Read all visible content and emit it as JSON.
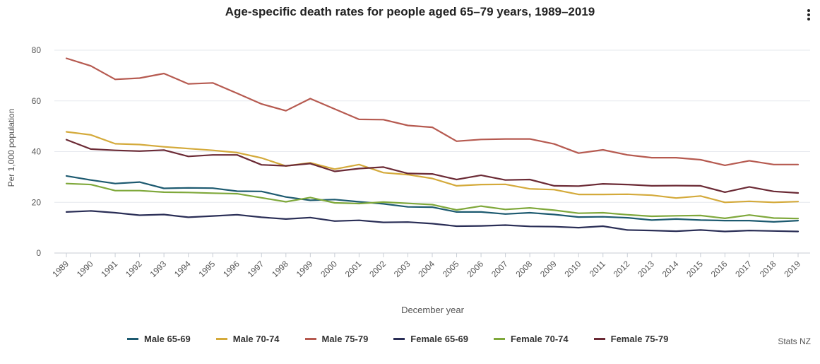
{
  "title": "Age-specific death rates for people aged 65–79 years, 1989–2019",
  "credit": "Stats NZ",
  "menu_icon": "kebab-menu-icon",
  "chart_data": {
    "type": "line",
    "title": "Age-specific death rates for people aged 65–79 years, 1989–2019",
    "xlabel": "December year",
    "ylabel": "Per 1,000 population",
    "ylim": [
      0,
      80
    ],
    "yticks": [
      0,
      20,
      40,
      60,
      80
    ],
    "grid": true,
    "legend_position": "bottom",
    "categories": [
      "1989",
      "1990",
      "1991",
      "1992",
      "1993",
      "1994",
      "1995",
      "1996",
      "1997",
      "1998",
      "1999",
      "2000",
      "2001",
      "2002",
      "2003",
      "2004",
      "2005",
      "2006",
      "2007",
      "2008",
      "2009",
      "2010",
      "2011",
      "2012",
      "2013",
      "2014",
      "2015",
      "2016",
      "2017",
      "2018",
      "2019"
    ],
    "series": [
      {
        "name": "Male 65-69",
        "color": "#1d5a70",
        "values": [
          30.4,
          28.8,
          27.4,
          28.0,
          25.5,
          25.7,
          25.6,
          24.4,
          24.3,
          22.1,
          20.8,
          21.1,
          20.2,
          19.4,
          18.2,
          18.1,
          16.2,
          16.2,
          15.4,
          15.9,
          15.2,
          14.2,
          14.3,
          13.9,
          13.0,
          13.4,
          13.0,
          12.8,
          12.8,
          12.3,
          12.8
        ]
      },
      {
        "name": "Male 70-74",
        "color": "#d4aa3b",
        "values": [
          47.8,
          46.6,
          43.1,
          42.8,
          41.9,
          41.2,
          40.5,
          39.6,
          37.5,
          34.3,
          35.6,
          33.1,
          34.9,
          31.7,
          30.9,
          29.4,
          26.5,
          27.0,
          27.1,
          25.3,
          25.0,
          23.1,
          23.1,
          23.2,
          22.8,
          21.7,
          22.5,
          20.0,
          20.4,
          20.0,
          20.3
        ]
      },
      {
        "name": "Male 75-79",
        "color": "#b65a50",
        "values": [
          76.8,
          73.8,
          68.5,
          69.0,
          70.8,
          66.7,
          67.1,
          63.0,
          58.8,
          56.1,
          60.9,
          56.8,
          52.7,
          52.6,
          50.3,
          49.6,
          44.1,
          44.8,
          45.0,
          45.0,
          43.0,
          39.4,
          40.7,
          38.7,
          37.6,
          37.6,
          36.8,
          34.6,
          36.4,
          34.9,
          34.9
        ]
      },
      {
        "name": "Female 65-69",
        "color": "#2a2e56",
        "values": [
          16.2,
          16.6,
          15.9,
          14.9,
          15.2,
          14.1,
          14.6,
          15.1,
          14.1,
          13.4,
          14.0,
          12.6,
          12.9,
          12.1,
          12.2,
          11.6,
          10.6,
          10.7,
          11.0,
          10.5,
          10.4,
          10.0,
          10.6,
          9.1,
          8.9,
          8.6,
          9.1,
          8.5,
          8.9,
          8.7,
          8.5
        ]
      },
      {
        "name": "Female 70-74",
        "color": "#7fa83b",
        "values": [
          27.4,
          27.0,
          24.6,
          24.6,
          24.0,
          23.9,
          23.6,
          23.4,
          21.8,
          20.2,
          21.9,
          19.8,
          19.5,
          20.1,
          19.6,
          19.1,
          17.0,
          18.5,
          17.2,
          17.8,
          16.9,
          15.7,
          15.9,
          15.1,
          14.5,
          14.7,
          14.8,
          13.7,
          15.0,
          13.8,
          13.6
        ]
      },
      {
        "name": "Female 75-79",
        "color": "#6b2a35",
        "values": [
          44.7,
          41.0,
          40.5,
          40.2,
          40.6,
          38.1,
          38.7,
          38.7,
          34.8,
          34.4,
          35.3,
          32.2,
          33.3,
          33.9,
          31.4,
          31.2,
          29.0,
          30.7,
          28.8,
          29.0,
          26.5,
          26.4,
          27.3,
          27.0,
          26.5,
          26.6,
          26.5,
          24.0,
          26.1,
          24.3,
          23.7
        ]
      }
    ]
  }
}
